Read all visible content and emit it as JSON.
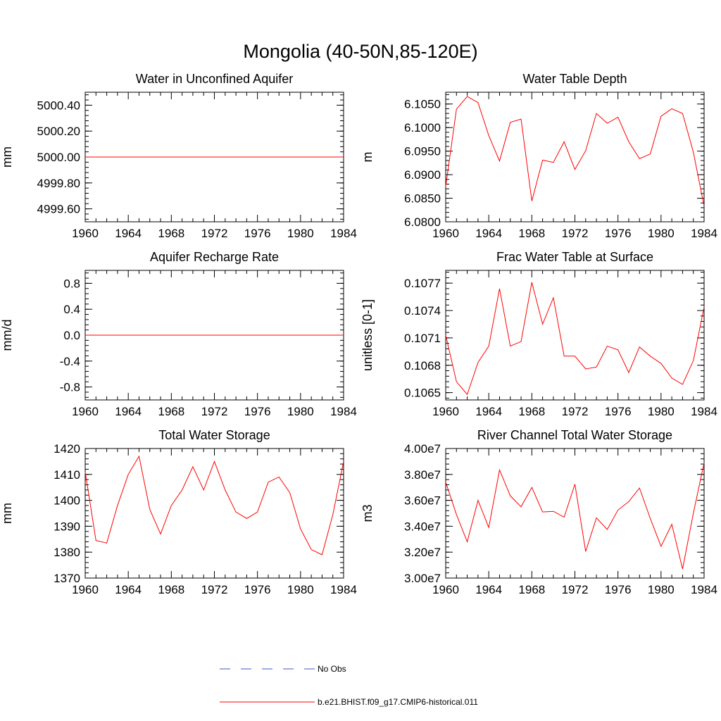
{
  "figure": {
    "title": "Mongolia (40-50N,85-120E)"
  },
  "legend": [
    {
      "label": "No Obs",
      "color": "#4455cc",
      "style": "dashed"
    },
    {
      "label": "b.e21.BHIST.f09_g17.CMIP6-historical.011",
      "color": "#ff0000",
      "style": "solid"
    }
  ],
  "chart_data": [
    {
      "type": "line",
      "title": "Water in Unconfined Aquifer",
      "ylabel": "mm",
      "xlim": [
        1960,
        1984
      ],
      "ylim": [
        4999.5,
        5000.5
      ],
      "x_ticks": [
        "1960",
        "1964",
        "1968",
        "1972",
        "1976",
        "1980",
        "1984"
      ],
      "y_ticks": [
        {
          "value": 4999.6,
          "label": "4999.60"
        },
        {
          "value": 4999.8,
          "label": "4999.80"
        },
        {
          "value": 5000.0,
          "label": "5000.00"
        },
        {
          "value": 5000.2,
          "label": "5000.20"
        },
        {
          "value": 5000.4,
          "label": "5000.40"
        }
      ],
      "x": [
        1960,
        1961,
        1962,
        1963,
        1964,
        1965,
        1966,
        1967,
        1968,
        1969,
        1970,
        1971,
        1972,
        1973,
        1974,
        1975,
        1976,
        1977,
        1978,
        1979,
        1980,
        1981,
        1982,
        1983,
        1984
      ],
      "series": [
        {
          "color": "#ff0000",
          "values": [
            5000,
            5000,
            5000,
            5000,
            5000,
            5000,
            5000,
            5000,
            5000,
            5000,
            5000,
            5000,
            5000,
            5000,
            5000,
            5000,
            5000,
            5000,
            5000,
            5000,
            5000,
            5000,
            5000,
            5000,
            5000
          ]
        }
      ]
    },
    {
      "type": "line",
      "title": "Water Table Depth",
      "ylabel": "m",
      "xlim": [
        1960,
        1984
      ],
      "ylim": [
        6.08,
        6.1075
      ],
      "x_ticks": [
        "1960",
        "1964",
        "1968",
        "1972",
        "1976",
        "1980",
        "1984"
      ],
      "y_ticks": [
        {
          "value": 6.08,
          "label": "6.0800"
        },
        {
          "value": 6.085,
          "label": "6.0850"
        },
        {
          "value": 6.09,
          "label": "6.0900"
        },
        {
          "value": 6.095,
          "label": "6.0950"
        },
        {
          "value": 6.1,
          "label": "6.1000"
        },
        {
          "value": 6.105,
          "label": "6.1050"
        }
      ],
      "x": [
        1960,
        1961,
        1962,
        1963,
        1964,
        1965,
        1966,
        1967,
        1968,
        1969,
        1970,
        1971,
        1972,
        1973,
        1974,
        1975,
        1976,
        1977,
        1978,
        1979,
        1980,
        1981,
        1982,
        1983,
        1984
      ],
      "series": [
        {
          "color": "#ff0000",
          "values": [
            6.0875,
            6.1039,
            6.1066,
            6.1053,
            6.0983,
            6.0929,
            6.1011,
            6.1018,
            6.0844,
            6.0931,
            6.0926,
            6.097,
            6.0911,
            6.0951,
            6.103,
            6.1009,
            6.1022,
            6.097,
            6.0934,
            6.0944,
            6.1024,
            6.104,
            6.103,
            6.0948,
            6.0833
          ]
        }
      ]
    },
    {
      "type": "line",
      "title": "Aquifer Recharge Rate",
      "ylabel": "mm/d",
      "xlim": [
        1960,
        1984
      ],
      "ylim": [
        -1.0,
        1.0
      ],
      "x_ticks": [
        "1960",
        "1964",
        "1968",
        "1972",
        "1976",
        "1980",
        "1984"
      ],
      "y_ticks": [
        {
          "value": -0.8,
          "label": "-0.8"
        },
        {
          "value": -0.4,
          "label": "-0.4"
        },
        {
          "value": 0.0,
          "label": "0.0"
        },
        {
          "value": 0.4,
          "label": "0.4"
        },
        {
          "value": 0.8,
          "label": "0.8"
        }
      ],
      "x": [
        1960,
        1961,
        1962,
        1963,
        1964,
        1965,
        1966,
        1967,
        1968,
        1969,
        1970,
        1971,
        1972,
        1973,
        1974,
        1975,
        1976,
        1977,
        1978,
        1979,
        1980,
        1981,
        1982,
        1983,
        1984
      ],
      "series": [
        {
          "color": "#ff0000",
          "values": [
            0,
            0,
            0,
            0,
            0,
            0,
            0,
            0,
            0,
            0,
            0,
            0,
            0,
            0,
            0,
            0,
            0,
            0,
            0,
            0,
            0,
            0,
            0,
            0,
            0
          ]
        }
      ]
    },
    {
      "type": "line",
      "title": "Frac Water Table at Surface",
      "ylabel": "unitless [0-1]",
      "xlim": [
        1960,
        1984
      ],
      "ylim": [
        0.10642,
        0.10784
      ],
      "x_ticks": [
        "1960",
        "1964",
        "1968",
        "1972",
        "1976",
        "1980",
        "1984"
      ],
      "y_ticks": [
        {
          "value": 0.1065,
          "label": "0.1065"
        },
        {
          "value": 0.1068,
          "label": "0.1068"
        },
        {
          "value": 0.1071,
          "label": "0.1071"
        },
        {
          "value": 0.1074,
          "label": "0.1074"
        },
        {
          "value": 0.1077,
          "label": "0.1077"
        }
      ],
      "x": [
        1960,
        1961,
        1962,
        1963,
        1964,
        1965,
        1966,
        1967,
        1968,
        1969,
        1970,
        1971,
        1972,
        1973,
        1974,
        1975,
        1976,
        1977,
        1978,
        1979,
        1980,
        1981,
        1982,
        1983,
        1984
      ],
      "series": [
        {
          "color": "#ff0000",
          "values": [
            0.10713,
            0.10662,
            0.10648,
            0.10683,
            0.10701,
            0.10764,
            0.10701,
            0.10706,
            0.10771,
            0.10725,
            0.10754,
            0.1069,
            0.1069,
            0.10676,
            0.10678,
            0.10701,
            0.10697,
            0.10672,
            0.107,
            0.1069,
            0.10682,
            0.10666,
            0.10659,
            0.10685,
            0.10744
          ]
        }
      ]
    },
    {
      "type": "line",
      "title": "Total Water Storage",
      "ylabel": "mm",
      "xlim": [
        1960,
        1984
      ],
      "ylim": [
        1370,
        1420
      ],
      "x_ticks": [
        "1960",
        "1964",
        "1968",
        "1972",
        "1976",
        "1980",
        "1984"
      ],
      "y_ticks": [
        {
          "value": 1370,
          "label": "1370"
        },
        {
          "value": 1380,
          "label": "1380"
        },
        {
          "value": 1390,
          "label": "1390"
        },
        {
          "value": 1400,
          "label": "1400"
        },
        {
          "value": 1410,
          "label": "1410"
        },
        {
          "value": 1420,
          "label": "1420"
        }
      ],
      "x": [
        1960,
        1961,
        1962,
        1963,
        1964,
        1965,
        1966,
        1967,
        1968,
        1969,
        1970,
        1971,
        1972,
        1973,
        1974,
        1975,
        1976,
        1977,
        1978,
        1979,
        1980,
        1981,
        1982,
        1983,
        1984
      ],
      "series": [
        {
          "color": "#ff0000",
          "values": [
            1411,
            1384.5,
            1383.5,
            1398,
            1410,
            1417,
            1396.5,
            1387,
            1398,
            1404,
            1413,
            1404,
            1415,
            1404,
            1395.5,
            1393,
            1395.5,
            1407,
            1409,
            1403,
            1389,
            1381,
            1379,
            1394.5,
            1415
          ]
        }
      ]
    },
    {
      "type": "line",
      "title": "River Channel Total Water Storage",
      "ylabel": "m3",
      "xlim": [
        1960,
        1984
      ],
      "ylim": [
        30000000,
        40000000
      ],
      "x_ticks": [
        "1960",
        "1964",
        "1968",
        "1972",
        "1976",
        "1980",
        "1984"
      ],
      "y_ticks": [
        {
          "value": 30000000,
          "label": "3.00e7"
        },
        {
          "value": 32000000,
          "label": "3.20e7"
        },
        {
          "value": 34000000,
          "label": "3.40e7"
        },
        {
          "value": 36000000,
          "label": "3.60e7"
        },
        {
          "value": 38000000,
          "label": "3.80e7"
        },
        {
          "value": 40000000,
          "label": "4.00e7"
        }
      ],
      "x": [
        1960,
        1961,
        1962,
        1963,
        1964,
        1965,
        1966,
        1967,
        1968,
        1969,
        1970,
        1971,
        1972,
        1973,
        1974,
        1975,
        1976,
        1977,
        1978,
        1979,
        1980,
        1981,
        1982,
        1983,
        1984
      ],
      "series": [
        {
          "color": "#ff0000",
          "values": [
            37400000,
            34900000,
            32800000,
            36000000,
            33900000,
            38350000,
            36350000,
            35500000,
            37000000,
            35100000,
            35150000,
            34700000,
            37250000,
            32050000,
            34650000,
            33750000,
            35250000,
            35900000,
            36950000,
            34600000,
            32450000,
            34150000,
            30700000,
            35000000,
            38900000
          ]
        }
      ]
    }
  ]
}
